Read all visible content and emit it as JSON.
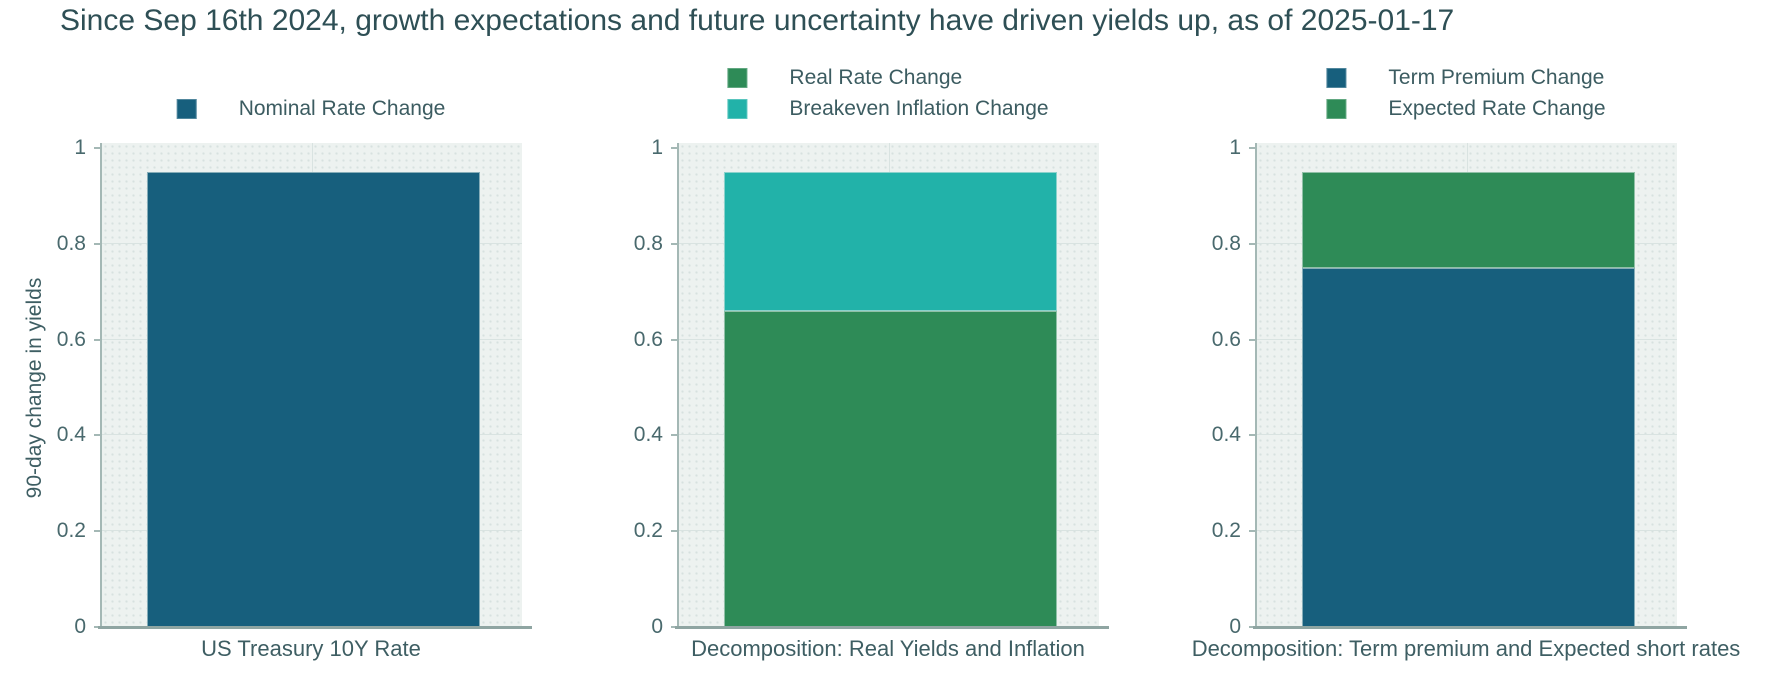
{
  "title": {
    "text": "Since Sep 16th 2024, growth expectations and future uncertainty have driven yields up, as of 2025-01-17"
  },
  "ylabel": "90-day change in yields",
  "colors": {
    "title_text": "#2E4F55",
    "legend_text": "#3C5C61",
    "tick_text": "#49696D",
    "plot_background": "#EDF2F0",
    "gridline": "#D9E3E1",
    "axis_spine": "#A4B8B5",
    "axis_line": "#8FA5A2",
    "dark_blue": "#175F7D",
    "green": "#2E8B57",
    "teal": "#22B2A9"
  },
  "chart_data": [
    {
      "type": "bar",
      "stacked": false,
      "categories": [
        "US Treasury 10Y Rate"
      ],
      "series": [
        {
          "name": "Nominal Rate Change",
          "color": "#175F7D",
          "values": [
            0.95
          ]
        }
      ],
      "ylim": [
        0,
        1
      ],
      "yticks": [
        0,
        0.2,
        0.4,
        0.6,
        0.8,
        1
      ],
      "ytick_labels": [
        "0",
        "0.2",
        "0.4",
        "0.6",
        "0.8",
        "1"
      ],
      "grid": true,
      "legend_position": "top-center"
    },
    {
      "type": "bar",
      "stacked": true,
      "categories": [
        "Decomposition: Real Yields and Inflation"
      ],
      "series": [
        {
          "name": "Real Rate Change",
          "color": "#2E8B57",
          "values": [
            0.66
          ]
        },
        {
          "name": "Breakeven Inflation Change",
          "color": "#22B2A9",
          "values": [
            0.29
          ]
        }
      ],
      "ylim": [
        0,
        1
      ],
      "yticks": [
        0,
        0.2,
        0.4,
        0.6,
        0.8,
        1
      ],
      "ytick_labels": [
        "0",
        "0.2",
        "0.4",
        "0.6",
        "0.8",
        "1"
      ],
      "grid": true,
      "legend_position": "top-center"
    },
    {
      "type": "bar",
      "stacked": true,
      "categories": [
        "Decomposition: Term premium and Expected short rates"
      ],
      "series": [
        {
          "name": "Term Premium Change",
          "color": "#175F7D",
          "values": [
            0.75
          ]
        },
        {
          "name": "Expected Rate Change",
          "color": "#2E8B57",
          "values": [
            0.2
          ]
        }
      ],
      "ylim": [
        0,
        1
      ],
      "yticks": [
        0,
        0.2,
        0.4,
        0.6,
        0.8,
        1
      ],
      "ytick_labels": [
        "0",
        "0.2",
        "0.4",
        "0.6",
        "0.8",
        "1"
      ],
      "grid": true,
      "legend_position": "top-center"
    }
  ]
}
